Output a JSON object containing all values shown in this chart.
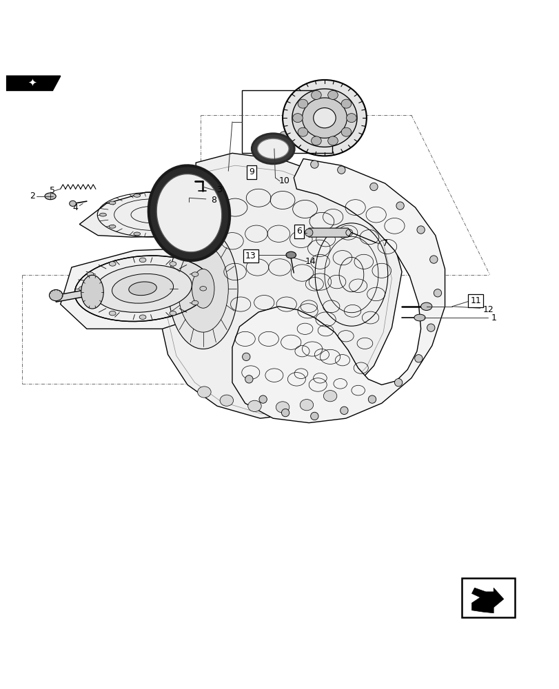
{
  "bg_color": "#ffffff",
  "line_color": "#000000",
  "line_width": 1.0,
  "thin_line": 0.5,
  "fig_width": 8.12,
  "fig_height": 10.0,
  "dpi": 100,
  "font_size_label": 9,
  "font_size_box": 8,
  "dash_color": "#555555",
  "leader_color": "#333333"
}
